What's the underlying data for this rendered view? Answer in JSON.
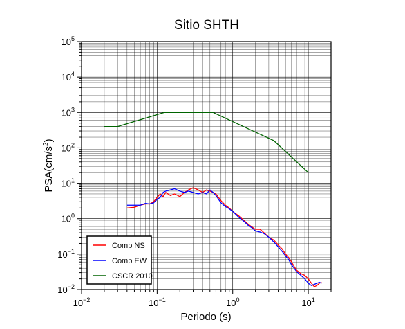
{
  "chart_data": {
    "type": "line",
    "title": "Sitio SHTH",
    "xlabel": "Periodo (s)",
    "ylabel": {
      "base": "PSA(cm/s",
      "sup": "2",
      "end": ")"
    },
    "xscale": "log",
    "yscale": "log",
    "xlim": [
      0.01,
      20
    ],
    "ylim": [
      0.01,
      100000
    ],
    "grid": true,
    "legend_position": "bottom-left",
    "x_ticks": [
      {
        "base": "10",
        "exp": "−2",
        "value": 0.01
      },
      {
        "base": "10",
        "exp": "−1",
        "value": 0.1
      },
      {
        "base": "10",
        "exp": "0",
        "value": 1
      },
      {
        "base": "10",
        "exp": "1",
        "value": 10
      }
    ],
    "y_ticks": [
      {
        "base": "10",
        "exp": "−2",
        "value": 0.01
      },
      {
        "base": "10",
        "exp": "−1",
        "value": 0.1
      },
      {
        "base": "10",
        "exp": "0",
        "value": 1
      },
      {
        "base": "10",
        "exp": "1",
        "value": 10
      },
      {
        "base": "10",
        "exp": "2",
        "value": 100
      },
      {
        "base": "10",
        "exp": "3",
        "value": 1000
      },
      {
        "base": "10",
        "exp": "4",
        "value": 10000
      },
      {
        "base": "10",
        "exp": "5",
        "value": 100000
      }
    ],
    "series": [
      {
        "name": "Comp NS",
        "color": "#ff0000",
        "points": [
          [
            0.04,
            2.0
          ],
          [
            0.05,
            2.1
          ],
          [
            0.06,
            2.4
          ],
          [
            0.07,
            2.6
          ],
          [
            0.08,
            2.6
          ],
          [
            0.09,
            3.0
          ],
          [
            0.1,
            4.0
          ],
          [
            0.11,
            5.0
          ],
          [
            0.12,
            4.2
          ],
          [
            0.13,
            5.5
          ],
          [
            0.15,
            4.5
          ],
          [
            0.17,
            5.0
          ],
          [
            0.2,
            4.2
          ],
          [
            0.23,
            5.5
          ],
          [
            0.26,
            6.5
          ],
          [
            0.3,
            7.5
          ],
          [
            0.35,
            6.5
          ],
          [
            0.4,
            5.5
          ],
          [
            0.45,
            6.5
          ],
          [
            0.5,
            6.0
          ],
          [
            0.55,
            5.5
          ],
          [
            0.6,
            5.0
          ],
          [
            0.7,
            3.2
          ],
          [
            0.8,
            2.4
          ],
          [
            0.9,
            2.0
          ],
          [
            1.0,
            1.6
          ],
          [
            1.2,
            1.2
          ],
          [
            1.4,
            0.9
          ],
          [
            1.6,
            0.7
          ],
          [
            1.8,
            0.58
          ],
          [
            2.0,
            0.5
          ],
          [
            2.3,
            0.5
          ],
          [
            2.6,
            0.4
          ],
          [
            3.0,
            0.3
          ],
          [
            3.5,
            0.25
          ],
          [
            4.0,
            0.18
          ],
          [
            4.5,
            0.14
          ],
          [
            5.0,
            0.1
          ],
          [
            5.5,
            0.08
          ],
          [
            6.0,
            0.06
          ],
          [
            6.5,
            0.045
          ],
          [
            7.0,
            0.035
          ],
          [
            8.0,
            0.028
          ],
          [
            9.0,
            0.025
          ],
          [
            10.0,
            0.02
          ],
          [
            11.0,
            0.015
          ],
          [
            12.0,
            0.012
          ],
          [
            13.0,
            0.013
          ],
          [
            14.0,
            0.015
          ],
          [
            15.0,
            0.016
          ]
        ]
      },
      {
        "name": "Comp EW",
        "color": "#0000ff",
        "points": [
          [
            0.04,
            2.4
          ],
          [
            0.05,
            2.4
          ],
          [
            0.06,
            2.4
          ],
          [
            0.07,
            2.7
          ],
          [
            0.08,
            2.6
          ],
          [
            0.09,
            2.8
          ],
          [
            0.1,
            3.5
          ],
          [
            0.11,
            4.0
          ],
          [
            0.12,
            5.5
          ],
          [
            0.13,
            6.0
          ],
          [
            0.15,
            6.5
          ],
          [
            0.17,
            7.0
          ],
          [
            0.2,
            6.0
          ],
          [
            0.23,
            5.5
          ],
          [
            0.26,
            6.0
          ],
          [
            0.3,
            5.5
          ],
          [
            0.35,
            5.0
          ],
          [
            0.4,
            5.5
          ],
          [
            0.45,
            5.0
          ],
          [
            0.5,
            6.5
          ],
          [
            0.55,
            5.5
          ],
          [
            0.6,
            4.5
          ],
          [
            0.7,
            2.8
          ],
          [
            0.8,
            2.2
          ],
          [
            0.9,
            1.9
          ],
          [
            1.0,
            1.6
          ],
          [
            1.2,
            1.1
          ],
          [
            1.4,
            0.85
          ],
          [
            1.6,
            0.65
          ],
          [
            1.8,
            0.55
          ],
          [
            2.0,
            0.45
          ],
          [
            2.3,
            0.42
          ],
          [
            2.6,
            0.38
          ],
          [
            3.0,
            0.3
          ],
          [
            3.5,
            0.22
          ],
          [
            4.0,
            0.16
          ],
          [
            4.5,
            0.12
          ],
          [
            5.0,
            0.09
          ],
          [
            5.5,
            0.07
          ],
          [
            6.0,
            0.05
          ],
          [
            6.5,
            0.04
          ],
          [
            7.0,
            0.032
          ],
          [
            8.0,
            0.025
          ],
          [
            9.0,
            0.02
          ],
          [
            10.0,
            0.015
          ],
          [
            11.0,
            0.013
          ],
          [
            12.0,
            0.014
          ],
          [
            13.0,
            0.015
          ],
          [
            14.0,
            0.016
          ],
          [
            15.0,
            0.015
          ]
        ]
      },
      {
        "name": "CSCR 2010",
        "color": "#006400",
        "points": [
          [
            0.02,
            400
          ],
          [
            0.03,
            400
          ],
          [
            0.125,
            1000
          ],
          [
            0.55,
            1000
          ],
          [
            3.5,
            160
          ],
          [
            10.0,
            20
          ]
        ]
      }
    ]
  }
}
